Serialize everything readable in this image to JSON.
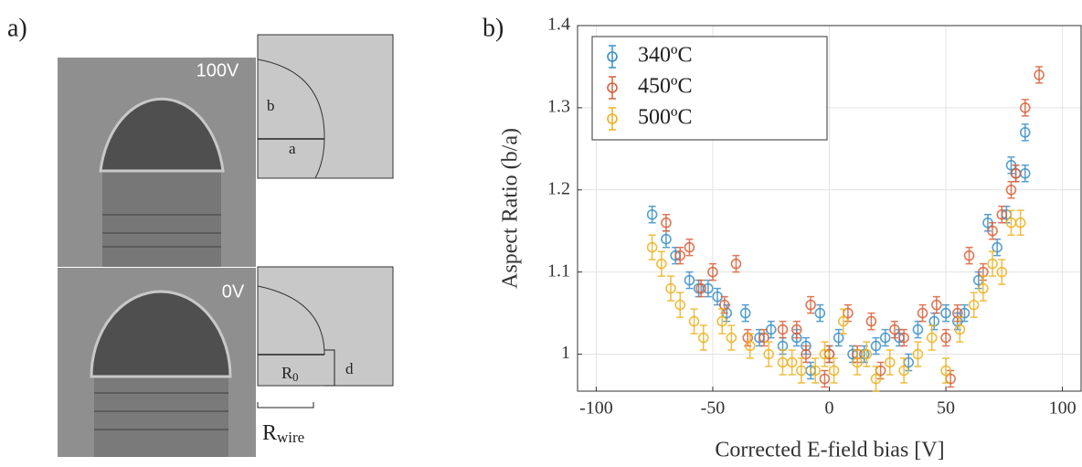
{
  "panel_a": {
    "label": "a)",
    "top_voltage": "100V",
    "label_b": "b",
    "label_a": "a",
    "bottom_voltage": "0V",
    "label_r0": {
      "text": "R",
      "sub": "0"
    },
    "label_d": "d",
    "label_rwire": {
      "text": "R",
      "sub": "wire"
    }
  },
  "chart_data": {
    "type": "scatter",
    "panel_label": "b)",
    "x_label": "Corrected E-field bias [V]",
    "y_label": "Aspect Ratio (b/a)",
    "xlim": [
      -108,
      108
    ],
    "ylim": [
      0.955,
      1.4
    ],
    "xticks": [
      -100,
      -50,
      0,
      50,
      100
    ],
    "yticks": [
      1,
      1.1,
      1.2,
      1.3,
      1.4
    ],
    "grid": true,
    "legend": "upper left",
    "series": [
      {
        "name": "340ºC",
        "color": "#3a8fc8",
        "error": 0.01,
        "x": [
          -76,
          -70,
          -66,
          -60,
          -56,
          -52,
          -48,
          -44,
          -36,
          -30,
          -25,
          -20,
          -14,
          -10,
          -8,
          -4,
          0,
          4,
          10,
          15,
          20,
          24,
          30,
          34,
          38,
          45,
          50,
          55,
          58,
          64,
          68,
          72,
          76,
          78,
          80,
          84,
          84
        ],
        "values": [
          1.17,
          1.14,
          1.12,
          1.09,
          1.08,
          1.08,
          1.07,
          1.05,
          1.05,
          1.02,
          1.03,
          1.01,
          1.02,
          1.01,
          0.98,
          1.05,
          1.0,
          1.02,
          1.0,
          1.0,
          1.01,
          1.02,
          1.02,
          0.99,
          1.03,
          1.04,
          1.05,
          1.04,
          1.05,
          1.09,
          1.16,
          1.13,
          1.17,
          1.23,
          1.22,
          1.27,
          1.22
        ]
      },
      {
        "name": "450ºC",
        "color": "#d9603b",
        "error": 0.01,
        "x": [
          -70,
          -64,
          -60,
          -55,
          -50,
          -45,
          -40,
          -35,
          -28,
          -20,
          -14,
          -10,
          -8,
          -2,
          0,
          8,
          12,
          18,
          22,
          28,
          32,
          40,
          46,
          50,
          52,
          55,
          60,
          66,
          70,
          74,
          78,
          80,
          84,
          90
        ],
        "values": [
          1.16,
          1.12,
          1.13,
          1.08,
          1.1,
          1.06,
          1.11,
          1.02,
          1.02,
          1.03,
          1.03,
          1.0,
          1.06,
          0.97,
          1.0,
          1.05,
          1.0,
          1.04,
          0.98,
          1.03,
          1.02,
          1.05,
          1.06,
          1.02,
          0.97,
          1.05,
          1.12,
          1.1,
          1.15,
          1.17,
          1.2,
          1.22,
          1.3,
          1.34
        ]
      },
      {
        "name": "500ºC",
        "color": "#edb120",
        "error": 0.015,
        "x": [
          -76,
          -72,
          -68,
          -64,
          -58,
          -54,
          -46,
          -42,
          -34,
          -26,
          -20,
          -16,
          -12,
          -6,
          -2,
          2,
          6,
          12,
          16,
          20,
          26,
          32,
          38,
          44,
          50,
          56,
          62,
          66,
          70,
          74,
          78,
          82
        ],
        "values": [
          1.13,
          1.11,
          1.08,
          1.06,
          1.04,
          1.02,
          1.04,
          1.02,
          1.01,
          1.0,
          0.99,
          0.99,
          0.98,
          0.98,
          1.0,
          0.98,
          1.04,
          0.99,
          1.0,
          0.97,
          0.99,
          0.98,
          1.0,
          1.02,
          0.98,
          1.03,
          1.06,
          1.08,
          1.11,
          1.1,
          1.16,
          1.16
        ]
      }
    ]
  }
}
